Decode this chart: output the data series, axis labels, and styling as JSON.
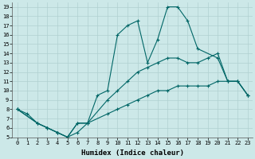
{
  "xlabel": "Humidex (Indice chaleur)",
  "background_color": "#cce8e8",
  "grid_color": "#b0d0d0",
  "line_color": "#006666",
  "ylim": [
    5,
    19.5
  ],
  "xlim": [
    -0.5,
    23.5
  ],
  "yticks": [
    5,
    6,
    7,
    8,
    9,
    10,
    11,
    12,
    13,
    14,
    15,
    16,
    17,
    18,
    19
  ],
  "xticks": [
    0,
    1,
    2,
    3,
    4,
    5,
    6,
    7,
    8,
    9,
    10,
    11,
    12,
    13,
    14,
    15,
    16,
    17,
    18,
    19,
    20,
    21,
    22,
    23
  ],
  "series": [
    {
      "x": [
        0,
        1,
        2,
        3,
        4,
        5,
        6,
        7,
        8,
        9,
        10,
        11,
        12,
        13,
        14,
        15,
        16,
        17,
        18,
        20,
        21,
        22,
        23
      ],
      "y": [
        8,
        7.5,
        6.5,
        6,
        5.5,
        5,
        5.5,
        6.5,
        9.5,
        10,
        16,
        17,
        17.5,
        13,
        15.5,
        19,
        19,
        17.5,
        14.5,
        13.5,
        11,
        11,
        9.5
      ]
    },
    {
      "x": [
        0,
        2,
        3,
        4,
        5,
        6,
        7,
        9,
        10,
        11,
        12,
        13,
        14,
        15,
        16,
        17,
        18,
        19,
        20,
        21,
        22,
        23
      ],
      "y": [
        8,
        6.5,
        6,
        5.5,
        5,
        6.5,
        6.5,
        9,
        10,
        11,
        12,
        12.5,
        13,
        13.5,
        13.5,
        13,
        13,
        13.5,
        14,
        11,
        11,
        9.5
      ]
    },
    {
      "x": [
        0,
        2,
        3,
        4,
        5,
        6,
        7,
        9,
        10,
        11,
        12,
        13,
        14,
        15,
        16,
        17,
        18,
        19,
        20,
        21,
        22,
        23
      ],
      "y": [
        8,
        6.5,
        6,
        5.5,
        5,
        6.5,
        6.5,
        7.5,
        8,
        8.5,
        9,
        9.5,
        10,
        10,
        10.5,
        10.5,
        10.5,
        10.5,
        11,
        11,
        11,
        9.5
      ]
    }
  ]
}
